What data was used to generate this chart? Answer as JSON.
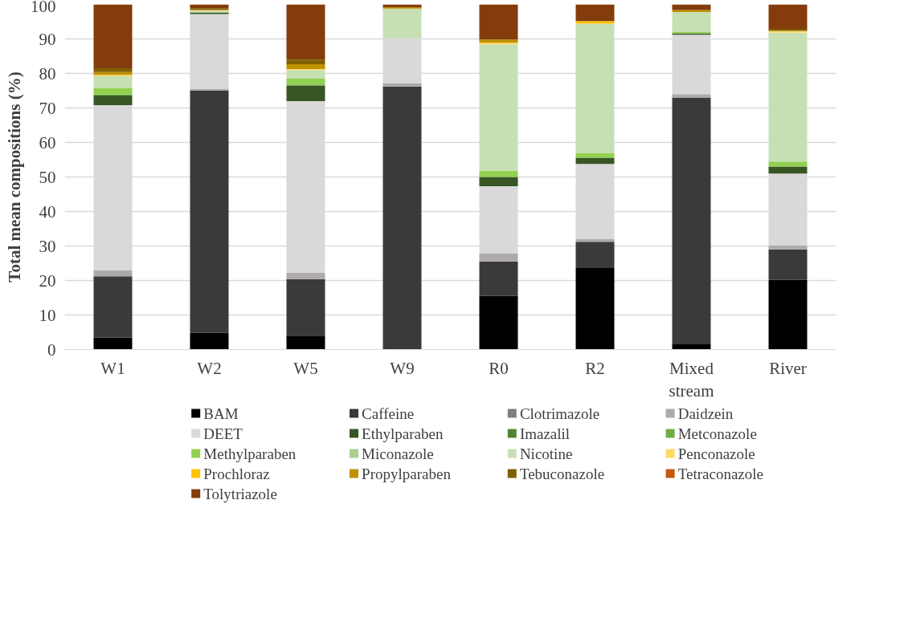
{
  "chart_data": {
    "type": "bar",
    "stacked": true,
    "ylabel": "Total mean compositions (%)",
    "categories": [
      "W1",
      "W2",
      "W5",
      "W9",
      "R0",
      "R2",
      "Mixed\nstream",
      "River"
    ],
    "ylim": [
      0,
      100
    ],
    "yticks": [
      0,
      10,
      20,
      30,
      40,
      50,
      60,
      70,
      80,
      90,
      100
    ],
    "grid": "y",
    "legend": "bottom",
    "series": [
      {
        "name": "BAM",
        "color": "#000000",
        "values": [
          3.5,
          4.8,
          4,
          0,
          15.6,
          23.6,
          1.5,
          20.2
        ]
      },
      {
        "name": "Caffeine",
        "color": "#3a3a3a",
        "values": [
          17.7,
          70.2,
          16.4,
          76.2,
          9.9,
          7.6,
          71.5,
          8.8
        ]
      },
      {
        "name": "Clotrimazole",
        "color": "#7f7f7f",
        "values": [
          0,
          0,
          0,
          0,
          0,
          0,
          0,
          0
        ]
      },
      {
        "name": "Daidzein",
        "color": "#aeaaaa",
        "values": [
          1.8,
          0.6,
          1.8,
          1,
          2.3,
          0.8,
          1,
          1.2
        ]
      },
      {
        "name": "DEET",
        "color": "#d9d9d9",
        "values": [
          47.8,
          21.6,
          49.8,
          13,
          19.5,
          21.8,
          17.2,
          20.8
        ]
      },
      {
        "name": "Ethylparaben",
        "color": "#375623",
        "values": [
          2.8,
          0.5,
          4.5,
          0,
          2.7,
          1.8,
          0.4,
          2
        ]
      },
      {
        "name": "Imazalil",
        "color": "#548235",
        "values": [
          0,
          0,
          0,
          0,
          0,
          0,
          0,
          0
        ]
      },
      {
        "name": "Metconazole",
        "color": "#70ad47",
        "values": [
          0.3,
          0,
          0.3,
          0,
          0,
          0,
          0,
          0
        ]
      },
      {
        "name": "Methylparaben",
        "color": "#92d050",
        "values": [
          1.9,
          0,
          1.7,
          0,
          1.8,
          1.4,
          0.5,
          1.5
        ]
      },
      {
        "name": "Miconazole",
        "color": "#a9d08e",
        "values": [
          0,
          0,
          0,
          0,
          0,
          0,
          0,
          0
        ]
      },
      {
        "name": "Nicotine",
        "color": "#c6e0b4",
        "values": [
          3.4,
          0.4,
          2.5,
          8.6,
          36.6,
          37.4,
          5.7,
          37.3
        ]
      },
      {
        "name": "Penconazole",
        "color": "#ffd966",
        "values": [
          0.4,
          0.3,
          0.3,
          0,
          0.5,
          0,
          0,
          0.5
        ]
      },
      {
        "name": "Prochloraz",
        "color": "#ffc000",
        "values": [
          0,
          0,
          0,
          0,
          0,
          0.8,
          0,
          0
        ]
      },
      {
        "name": "Propylparaben",
        "color": "#bf9000",
        "values": [
          0.8,
          0,
          1.4,
          0.4,
          0.9,
          0,
          0.6,
          0
        ]
      },
      {
        "name": "Tebuconazole",
        "color": "#7f6000",
        "values": [
          1.1,
          0.5,
          1.3,
          0,
          0,
          0,
          0,
          0.6
        ]
      },
      {
        "name": "Tetraconazole",
        "color": "#c55a11",
        "values": [
          0,
          0,
          0,
          0,
          0,
          0,
          0,
          0
        ]
      },
      {
        "name": "Tolytriazole",
        "color": "#843c0c",
        "values": [
          18.5,
          1.1,
          16,
          0.8,
          10.2,
          4.8,
          1.6,
          7.1
        ]
      }
    ]
  }
}
